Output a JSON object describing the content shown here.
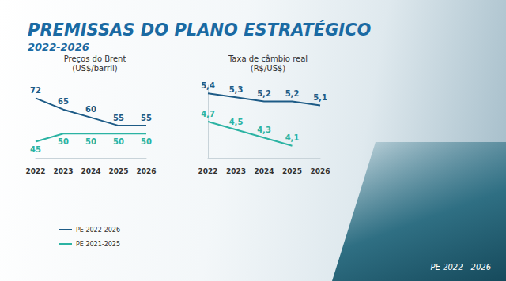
{
  "title": "PREMISSAS DO PLANO ESTRATÉGICO",
  "subtitle": "2022-2026",
  "footer": "PE 2022 - 2026",
  "chart_data": [
    {
      "type": "line",
      "title": "Preços do Brent",
      "subtitle": "(US$/barril)",
      "categories": [
        "2022",
        "2023",
        "2024",
        "2025",
        "2026"
      ],
      "series": [
        {
          "name": "PE 2022-2026",
          "color": "#1d5b86",
          "values": [
            72,
            65,
            60,
            55,
            55
          ]
        },
        {
          "name": "PE 2021-2025",
          "color": "#2bb3a3",
          "values": [
            45,
            50,
            50,
            50,
            50
          ]
        }
      ],
      "ylim": [
        35,
        80
      ],
      "grid": false,
      "data_labels": true,
      "tick_labels": "x",
      "legend": "bottom-left"
    },
    {
      "type": "line",
      "title": "Taxa de câmbio real",
      "subtitle": "(R$/US$)",
      "categories": [
        "2022",
        "2023",
        "2024",
        "2025",
        "2026"
      ],
      "series": [
        {
          "name": "PE 2022-2026",
          "color": "#1d5b86",
          "values": [
            5.4,
            5.3,
            5.2,
            5.2,
            5.1
          ],
          "value_labels": [
            "5,4",
            "5,3",
            "5,2",
            "5,2",
            "5,1"
          ]
        },
        {
          "name": "PE 2021-2025",
          "color": "#2bb3a3",
          "values": [
            4.7,
            4.5,
            4.3,
            4.1,
            null
          ],
          "value_labels": [
            "4,7",
            "4,5",
            "4,3",
            "4,1",
            null
          ]
        }
      ],
      "ylim": [
        3.8,
        5.6
      ],
      "grid": false,
      "data_labels": true,
      "tick_labels": "x"
    }
  ]
}
